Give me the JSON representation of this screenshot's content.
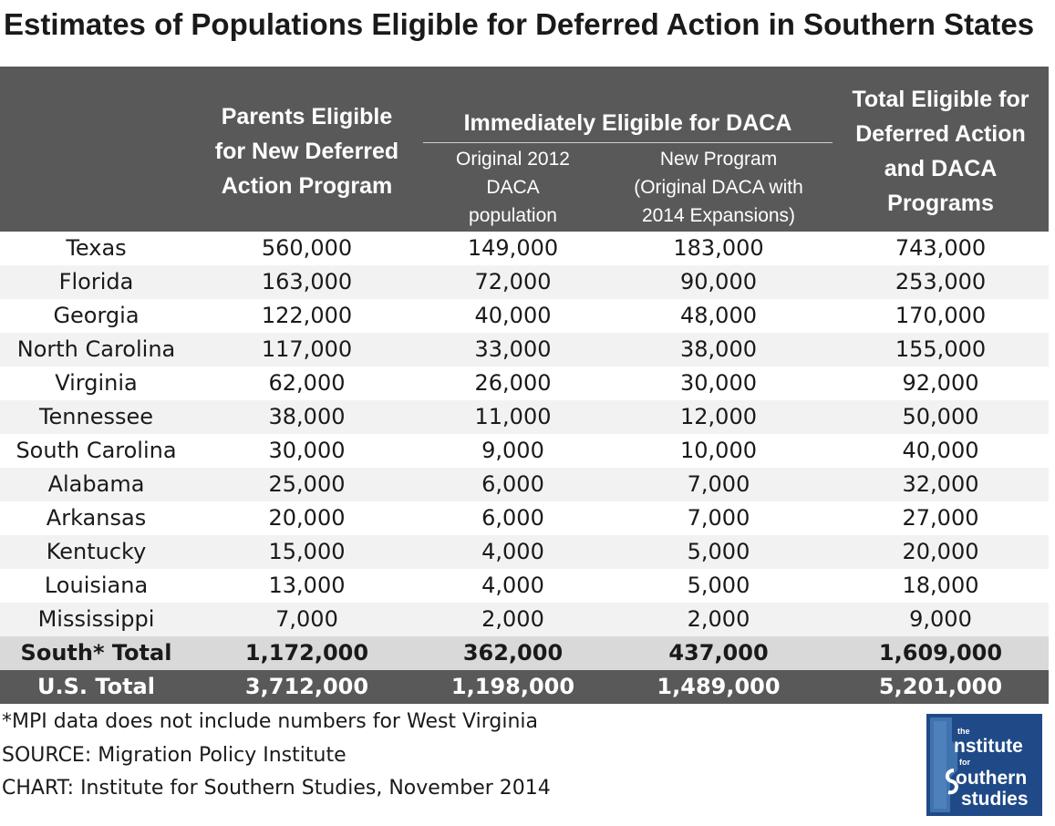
{
  "title": "Estimates of Populations Eligible for Deferred Action in Southern States",
  "chart_data": {
    "type": "table",
    "columns": {
      "parents": "Parents Eligible for New Deferred Action Program",
      "group": "Immediately Eligible for DACA",
      "original": "Original 2012 DACA population",
      "new_program": "New Program (Original DACA with 2014 Expansions)",
      "total": "Total Eligible for Deferred Action and DACA Programs"
    },
    "rows": [
      {
        "state": "Texas",
        "parents": "560,000",
        "original": "149,000",
        "new_program": "183,000",
        "total": "743,000"
      },
      {
        "state": "Florida",
        "parents": "163,000",
        "original": "72,000",
        "new_program": "90,000",
        "total": "253,000"
      },
      {
        "state": "Georgia",
        "parents": "122,000",
        "original": "40,000",
        "new_program": "48,000",
        "total": "170,000"
      },
      {
        "state": "North Carolina",
        "parents": "117,000",
        "original": "33,000",
        "new_program": "38,000",
        "total": "155,000"
      },
      {
        "state": "Virginia",
        "parents": "62,000",
        "original": "26,000",
        "new_program": "30,000",
        "total": "92,000"
      },
      {
        "state": "Tennessee",
        "parents": "38,000",
        "original": "11,000",
        "new_program": "12,000",
        "total": "50,000"
      },
      {
        "state": "South Carolina",
        "parents": "30,000",
        "original": "9,000",
        "new_program": "10,000",
        "total": "40,000"
      },
      {
        "state": "Alabama",
        "parents": "25,000",
        "original": "6,000",
        "new_program": "7,000",
        "total": "32,000"
      },
      {
        "state": "Arkansas",
        "parents": "20,000",
        "original": "6,000",
        "new_program": "7,000",
        "total": "27,000"
      },
      {
        "state": "Kentucky",
        "parents": "15,000",
        "original": "4,000",
        "new_program": "5,000",
        "total": "20,000"
      },
      {
        "state": "Louisiana",
        "parents": "13,000",
        "original": "4,000",
        "new_program": "5,000",
        "total": "18,000"
      },
      {
        "state": "Mississippi",
        "parents": "7,000",
        "original": "2,000",
        "new_program": "2,000",
        "total": "9,000"
      }
    ],
    "south_total": {
      "state": "South* Total",
      "parents": "1,172,000",
      "original": "362,000",
      "new_program": "437,000",
      "total": "1,609,000"
    },
    "us_total": {
      "state": "U.S. Total",
      "parents": "3,712,000",
      "original": "1,198,000",
      "new_program": "1,489,000",
      "total": "5,201,000"
    }
  },
  "notes": {
    "footnote": "*MPI data does not include numbers for West Virginia",
    "source": "SOURCE: Migration Policy Institute",
    "credit": "CHART: Institute for Southern Studies, November 2014"
  },
  "logo": {
    "text": "the institute for southern studies",
    "colors": {
      "background": "#1f4a87",
      "foreground": "#ffffff"
    }
  },
  "colors": {
    "header": "#595959",
    "stripe": "#f2f2f2",
    "south_total_row": "#d9d9d9",
    "us_total_row": "#595959"
  }
}
